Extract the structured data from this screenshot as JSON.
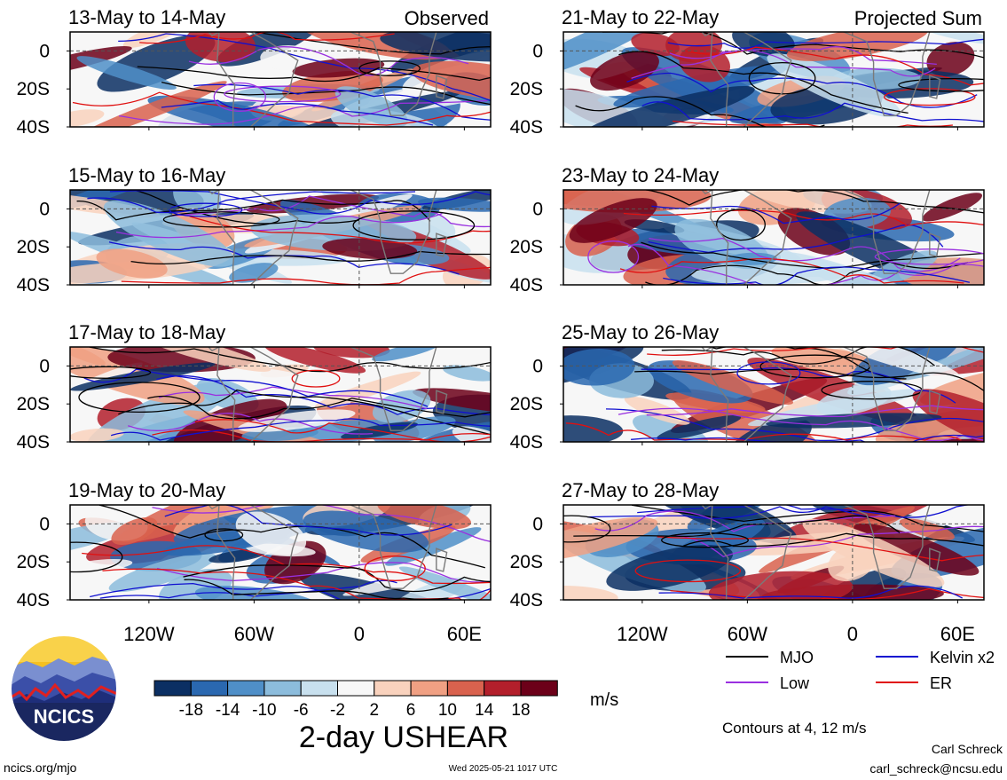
{
  "panels": [
    {
      "title": "13-May to 14-May",
      "tag": "Observed"
    },
    {
      "title": "15-May to 16-May",
      "tag": ""
    },
    {
      "title": "17-May to 18-May",
      "tag": ""
    },
    {
      "title": "19-May to 20-May",
      "tag": ""
    },
    {
      "title": "21-May to 22-May",
      "tag": "Projected Sum"
    },
    {
      "title": "23-May to 24-May",
      "tag": ""
    },
    {
      "title": "25-May to 26-May",
      "tag": ""
    },
    {
      "title": "27-May to 28-May",
      "tag": ""
    }
  ],
  "y_ticks": [
    "0",
    "20S",
    "40S"
  ],
  "x_ticks": [
    "120W",
    "60W",
    "0",
    "60E"
  ],
  "colorbar": {
    "labels": [
      "-18",
      "-14",
      "-10",
      "-6",
      "-2",
      "2",
      "6",
      "10",
      "14",
      "18"
    ],
    "unit": "m/s",
    "colors": [
      "#0b2f63",
      "#2a68b0",
      "#4f8fc8",
      "#8cbcdc",
      "#c8e0ee",
      "#f7f7f7",
      "#f9d2bd",
      "#f0a083",
      "#d9624e",
      "#b31f2b",
      "#6c0019"
    ]
  },
  "field_title": "2-day USHEAR",
  "legend": [
    {
      "label": "MJO",
      "color": "#000000"
    },
    {
      "label": "Kelvin x2",
      "color": "#1010d0"
    },
    {
      "label": "Low",
      "color": "#9a30e0"
    },
    {
      "label": "ER",
      "color": "#e01010"
    }
  ],
  "contours_note": "Contours at 4, 12 m/s",
  "logo_text": "NCICS",
  "footer": {
    "left": "ncics.org/mjo",
    "center": "Wed 2025-05-21 1017 UTC",
    "author": "Carl Schreck",
    "email": "carl_schreck@ncsu.edu"
  },
  "chart_data": {
    "type": "heatmap",
    "field": "2-day USHEAR",
    "unit": "m/s",
    "x_range": [
      -165,
      75
    ],
    "y_range": [
      10,
      -40
    ],
    "x_tick_values": [
      -120,
      -60,
      0,
      60
    ],
    "y_tick_values": [
      0,
      -20,
      -40
    ],
    "contour_levels": [
      4,
      12
    ],
    "color_levels": [
      -18,
      -14,
      -10,
      -6,
      -2,
      2,
      6,
      10,
      14,
      18
    ],
    "legend_placement": "bottom-right"
  }
}
